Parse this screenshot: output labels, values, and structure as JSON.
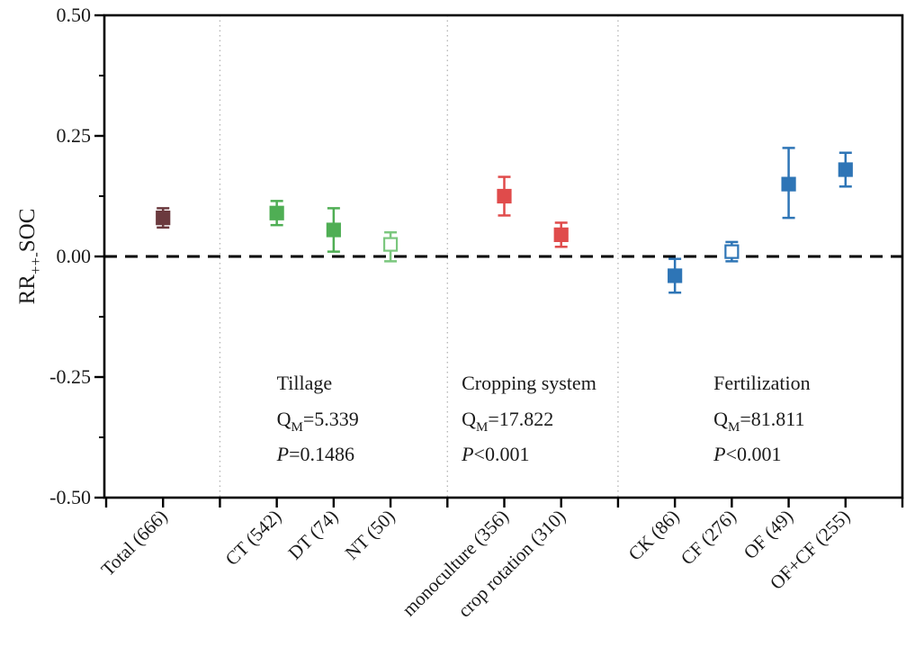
{
  "figure": {
    "description": "Forest plot of weighted response ratios of SOC with 95% CI by subgroup"
  },
  "chart_data": {
    "type": "scatter",
    "title": "",
    "xlabel": "",
    "ylabel": "RR++- SOC",
    "ylabel_parts": {
      "main": "RR",
      "sub": "++-",
      "rest": "SOC"
    },
    "ylim": [
      -0.5,
      0.5
    ],
    "grid": false,
    "legend_position": "none",
    "y_major_ticks": [
      {
        "value": 0.5,
        "label": "0.50"
      },
      {
        "value": 0.25,
        "label": "0.25"
      },
      {
        "value": 0.0,
        "label": "0.00"
      },
      {
        "value": -0.25,
        "label": "-0.25"
      },
      {
        "value": -0.5,
        "label": "-0.50"
      }
    ],
    "y_minor_ticks": [
      0.375,
      0.125,
      -0.125,
      -0.375
    ],
    "x_slot_range": [
      0,
      14
    ],
    "x_tick_slots": [
      0,
      1,
      2,
      3,
      4,
      5,
      6,
      7,
      8,
      9,
      10,
      11,
      12,
      13,
      14
    ],
    "separator_slots": [
      2,
      6,
      9
    ],
    "zero_line_value": 0.0,
    "colors": {
      "total": "#6b3a3e",
      "tillage_filled": "#4fae54",
      "tillage_open": "#7bc77e",
      "cropping": "#e04b4b",
      "fertilization": "#2e75b6",
      "separator": "#b3b3b3",
      "axis": "#000000"
    },
    "points": [
      {
        "label": "Total (666)",
        "group": "Total",
        "slot": 1,
        "value": 0.08,
        "ci_low": 0.06,
        "ci_high": 0.1,
        "color": "#6b3a3e",
        "style": "filled"
      },
      {
        "label": "CT (542)",
        "group": "Tillage",
        "slot": 3,
        "value": 0.09,
        "ci_low": 0.065,
        "ci_high": 0.115,
        "color": "#4fae54",
        "style": "filled"
      },
      {
        "label": "DT (74)",
        "group": "Tillage",
        "slot": 4,
        "value": 0.055,
        "ci_low": 0.01,
        "ci_high": 0.1,
        "color": "#4fae54",
        "style": "filled"
      },
      {
        "label": "NT (50)",
        "group": "Tillage",
        "slot": 5,
        "value": 0.025,
        "ci_low": -0.01,
        "ci_high": 0.05,
        "color": "#7bc77e",
        "style": "open"
      },
      {
        "label": "monoculture (356)",
        "group": "Cropping system",
        "slot": 7,
        "value": 0.125,
        "ci_low": 0.085,
        "ci_high": 0.165,
        "color": "#e04b4b",
        "style": "filled"
      },
      {
        "label": "crop rotation (310)",
        "group": "Cropping system",
        "slot": 8,
        "value": 0.045,
        "ci_low": 0.02,
        "ci_high": 0.07,
        "color": "#e04b4b",
        "style": "filled"
      },
      {
        "label": "CK (86)",
        "group": "Fertilization",
        "slot": 10,
        "value": -0.04,
        "ci_low": -0.075,
        "ci_high": -0.005,
        "color": "#2e75b6",
        "style": "filled"
      },
      {
        "label": "CF (276)",
        "group": "Fertilization",
        "slot": 11,
        "value": 0.01,
        "ci_low": -0.01,
        "ci_high": 0.03,
        "color": "#2e75b6",
        "style": "open"
      },
      {
        "label": "OF (49)",
        "group": "Fertilization",
        "slot": 12,
        "value": 0.15,
        "ci_low": 0.08,
        "ci_high": 0.225,
        "color": "#2e75b6",
        "style": "filled"
      },
      {
        "label": "OF+CF (255)",
        "group": "Fertilization",
        "slot": 13,
        "value": 0.18,
        "ci_low": 0.145,
        "ci_high": 0.215,
        "color": "#2e75b6",
        "style": "filled"
      }
    ],
    "annotations": [
      {
        "title": "Tillage",
        "q_label": "Q",
        "q_sub": "M",
        "q_value": "=5.339",
        "p_label": "P",
        "p_value": "=0.1486",
        "slot_x": 3.0
      },
      {
        "title": "Cropping system",
        "q_label": "Q",
        "q_sub": "M",
        "q_value": "=17.822",
        "p_label": "P",
        "p_value": "<0.001",
        "slot_x": 6.25
      },
      {
        "title": "Fertilization",
        "q_label": "Q",
        "q_sub": "M",
        "q_value": "=81.811",
        "p_label": "P",
        "p_value": "<0.001",
        "slot_x": 10.68
      }
    ]
  }
}
